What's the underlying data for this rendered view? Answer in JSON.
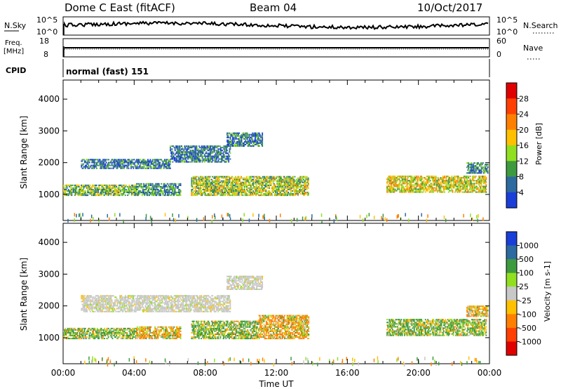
{
  "header": {
    "station": "Dome C East (fitACF)",
    "beam": "Beam 04",
    "date": "10/Oct/2017"
  },
  "panels": {
    "nsky": {
      "label": "N.Sky",
      "ticks": [
        "10^5",
        "10^0"
      ]
    },
    "nsearch": {
      "label": "N.Search",
      "ticks": [
        "10^5",
        "10^0"
      ]
    },
    "freq": {
      "label_line1": "Freq.",
      "label_line2": "[MHz]",
      "ticks": [
        "18",
        "8"
      ]
    },
    "nave": {
      "label": "Nave",
      "ticks": [
        "60",
        "0"
      ]
    },
    "cpid": {
      "label": "CPID",
      "text": "normal (fast) 151"
    }
  },
  "x_axis": {
    "label": "Time UT",
    "ticks": [
      "00:00",
      "04:00",
      "08:00",
      "12:00",
      "16:00",
      "20:00",
      "00:00"
    ]
  },
  "chart_data": [
    {
      "type": "heatmap",
      "name": "power",
      "ylabel": "Slant Range [km]",
      "yticks": [
        1000,
        2000,
        3000,
        4000
      ],
      "ylim": [
        180,
        4600
      ],
      "xlim_hours": [
        0,
        24
      ],
      "colorbar": {
        "label": "Power [dB]",
        "ticks": [
          "28",
          "24",
          "20",
          "16",
          "12",
          "8",
          "4"
        ],
        "colors": [
          "#e00000",
          "#ff4000",
          "#ff8000",
          "#ffc000",
          "#90e020",
          "#3e9a3e",
          "#2c6aa0",
          "#1a3fd8"
        ]
      },
      "echo_regions": [
        {
          "t0": 0.0,
          "t1": 4.1,
          "r0": 950,
          "r1": 1300,
          "level": 12
        },
        {
          "t0": 4.1,
          "t1": 6.6,
          "r0": 950,
          "r1": 1350,
          "level": 8
        },
        {
          "t0": 7.2,
          "t1": 13.8,
          "r0": 950,
          "r1": 1550,
          "level": 14
        },
        {
          "t0": 1.0,
          "t1": 6.0,
          "r0": 1800,
          "r1": 2100,
          "level": 6
        },
        {
          "t0": 6.0,
          "t1": 9.4,
          "r0": 2000,
          "r1": 2500,
          "level": 6
        },
        {
          "t0": 9.2,
          "t1": 11.2,
          "r0": 2500,
          "r1": 2950,
          "level": 6
        },
        {
          "t0": 18.2,
          "t1": 23.8,
          "r0": 1050,
          "r1": 1550,
          "level": 16
        },
        {
          "t0": 22.7,
          "t1": 23.9,
          "r0": 1650,
          "r1": 2000,
          "level": 8
        }
      ]
    },
    {
      "type": "heatmap",
      "name": "velocity",
      "ylabel": "Slant Range [km]",
      "yticks": [
        1000,
        2000,
        3000,
        4000
      ],
      "ylim": [
        180,
        4600
      ],
      "xlim_hours": [
        0,
        24
      ],
      "colorbar": {
        "label": "Velocity [m s-1]",
        "ticks": [
          "1000",
          "500",
          "100",
          "25",
          "-25",
          "-100",
          "-500",
          "-1000"
        ],
        "colors": [
          "#1a3fd8",
          "#2c6aa0",
          "#3e9a3e",
          "#90e020",
          "#c8c8c8",
          "#ffc000",
          "#ff8000",
          "#ff4000",
          "#e00000"
        ]
      },
      "echo_regions": [
        {
          "t0": 0.0,
          "t1": 4.1,
          "r0": 950,
          "r1": 1300,
          "level": 100
        },
        {
          "t0": 4.1,
          "t1": 6.6,
          "r0": 950,
          "r1": 1350,
          "level": -100
        },
        {
          "t0": 7.2,
          "t1": 11.0,
          "r0": 950,
          "r1": 1500,
          "level": 100
        },
        {
          "t0": 11.0,
          "t1": 13.8,
          "r0": 950,
          "r1": 1700,
          "level": -100
        },
        {
          "t0": 1.0,
          "t1": 9.4,
          "r0": 1800,
          "r1": 2300,
          "level": 0
        },
        {
          "t0": 9.2,
          "t1": 11.2,
          "r0": 2500,
          "r1": 2950,
          "level": 0
        },
        {
          "t0": 18.2,
          "t1": 23.8,
          "r0": 1050,
          "r1": 1550,
          "level": 100
        },
        {
          "t0": 22.7,
          "t1": 23.9,
          "r0": 1650,
          "r1": 2000,
          "level": -100
        }
      ]
    }
  ]
}
